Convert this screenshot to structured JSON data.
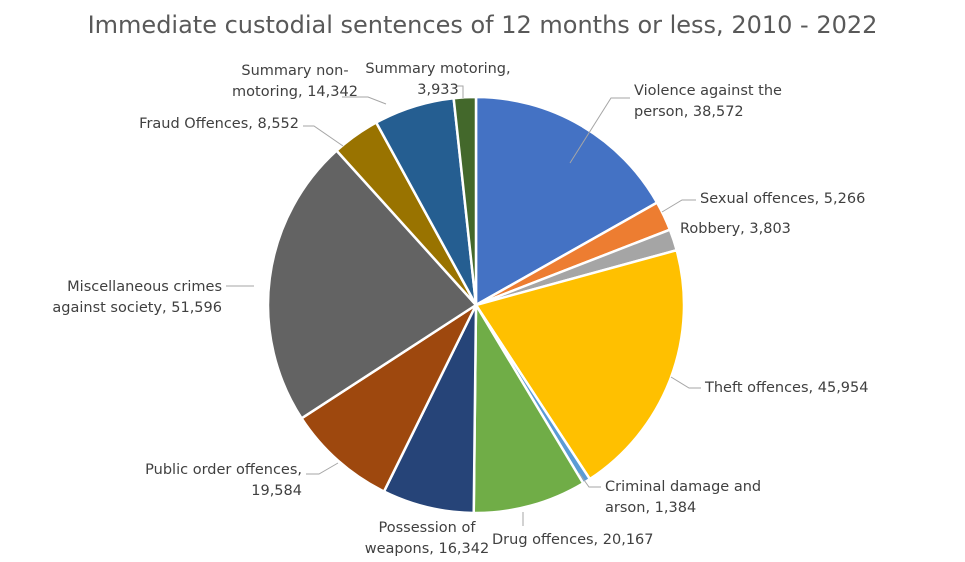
{
  "chart_data": {
    "type": "pie",
    "title": "Immediate custodial sentences of 12 months or less, 2010 - 2022",
    "slices": [
      {
        "label": "Violence against the person",
        "value": 38572,
        "display": "38,572",
        "color": "#4472C4"
      },
      {
        "label": "Sexual offences",
        "value": 5266,
        "display": "5,266",
        "color": "#ED7D31"
      },
      {
        "label": "Robbery",
        "value": 3803,
        "display": "3,803",
        "color": "#A5A5A5"
      },
      {
        "label": "Theft offences",
        "value": 45954,
        "display": "45,954",
        "color": "#FFC000"
      },
      {
        "label": "Criminal damage and arson",
        "value": 1384,
        "display": "1,384",
        "color": "#5B9BD5"
      },
      {
        "label": "Drug offences",
        "value": 20167,
        "display": "20,167",
        "color": "#70AD47"
      },
      {
        "label": "Possession of weapons",
        "value": 16342,
        "display": "16,342",
        "color": "#264478"
      },
      {
        "label": "Public order offences",
        "value": 19584,
        "display": "19,584",
        "color": "#9E480E"
      },
      {
        "label": "Miscellaneous crimes against society",
        "value": 51596,
        "display": "51,596",
        "color": "#636363"
      },
      {
        "label": "Fraud Offences",
        "value": 8552,
        "display": "8,552",
        "color": "#997300"
      },
      {
        "label": "Summary non-motoring",
        "value": 14342,
        "display": "14,342",
        "color": "#255E91"
      },
      {
        "label": "Summary motoring",
        "value": 3933,
        "display": "3,933",
        "color": "#43682B"
      }
    ],
    "label_lines": [
      [
        "Violence against the",
        "person,  38,572"
      ],
      [
        "Sexual offences,  5,266"
      ],
      [
        "Robbery,  3,803"
      ],
      [
        "Theft offences,  45,954"
      ],
      [
        "Criminal damage and",
        "arson,  1,384"
      ],
      [
        "Drug offences,  20,167"
      ],
      [
        "Possession of",
        "weapons,  16,342"
      ],
      [
        "Public order offences,",
        "19,584"
      ],
      [
        "Miscellaneous crimes",
        "against society,  51,596"
      ],
      [
        "Fraud Offences,  8,552"
      ],
      [
        "Summary non-",
        "motoring,  14,342"
      ],
      [
        "Summary motoring,",
        "3,933"
      ]
    ],
    "legend": "none"
  }
}
